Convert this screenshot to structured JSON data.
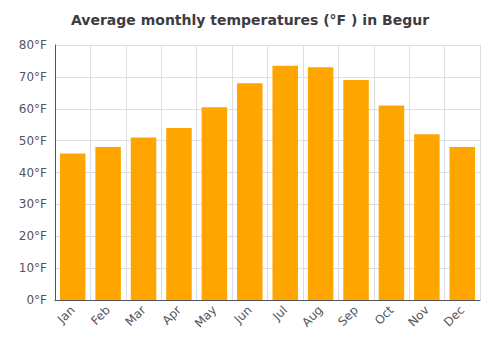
{
  "chart_data": {
    "type": "bar",
    "title": "Average monthly temperatures (°F ) in Begur",
    "categories": [
      "Jan",
      "Feb",
      "Mar",
      "Apr",
      "May",
      "Jun",
      "Jul",
      "Aug",
      "Sep",
      "Oct",
      "Nov",
      "Dec"
    ],
    "values": [
      46,
      48,
      51,
      54,
      60.5,
      68,
      73.5,
      73,
      69,
      61,
      52,
      48
    ],
    "color": "#FFA500",
    "ylim": [
      0,
      80
    ],
    "yticks": [
      {
        "value": 0,
        "label": "0°F"
      },
      {
        "value": 10,
        "label": "10°F"
      },
      {
        "value": 20,
        "label": "20°F"
      },
      {
        "value": 30,
        "label": "30°F"
      },
      {
        "value": 40,
        "label": "40°F"
      },
      {
        "value": 50,
        "label": "50°F"
      },
      {
        "value": 60,
        "label": "60°F"
      },
      {
        "value": 70,
        "label": "70°F"
      },
      {
        "value": 80,
        "label": "80°F"
      }
    ],
    "grid": true
  }
}
